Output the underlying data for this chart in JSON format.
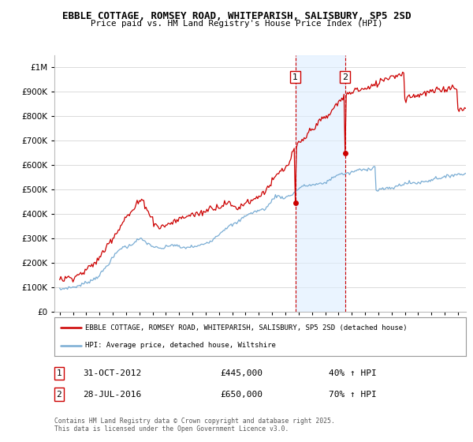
{
  "title": "EBBLE COTTAGE, ROMSEY ROAD, WHITEPARISH, SALISBURY, SP5 2SD",
  "subtitle": "Price paid vs. HM Land Registry's House Price Index (HPI)",
  "legend_line1": "EBBLE COTTAGE, ROMSEY ROAD, WHITEPARISH, SALISBURY, SP5 2SD (detached house)",
  "legend_line2": "HPI: Average price, detached house, Wiltshire",
  "transaction1_label": "1",
  "transaction1_date": "31-OCT-2012",
  "transaction1_price": "£445,000",
  "transaction1_hpi": "40% ↑ HPI",
  "transaction2_label": "2",
  "transaction2_date": "28-JUL-2016",
  "transaction2_price": "£650,000",
  "transaction2_hpi": "70% ↑ HPI",
  "footnote": "Contains HM Land Registry data © Crown copyright and database right 2025.\nThis data is licensed under the Open Government Licence v3.0.",
  "house_color": "#cc0000",
  "hpi_color": "#7aadd4",
  "shade_color": "#ddeeff",
  "transaction1_x": 2012.83,
  "transaction2_x": 2016.57,
  "ylim_max": 1050000,
  "background_color": "#ffffff",
  "hpi_monthly": [
    90000,
    91000,
    92000,
    93500,
    95000,
    96000,
    97000,
    97500,
    98000,
    98500,
    99000,
    99500,
    100000,
    101000,
    102000,
    103000,
    104000,
    105500,
    107000,
    109000,
    111000,
    113000,
    115000,
    117000,
    119000,
    121000,
    123000,
    125000,
    127000,
    129000,
    131000,
    134000,
    137000,
    140000,
    143000,
    146000,
    150000,
    155000,
    160000,
    166000,
    172000,
    178000,
    184000,
    190000,
    196000,
    202000,
    208000,
    214000,
    220000,
    226000,
    232000,
    238000,
    244000,
    249000,
    254000,
    258000,
    262000,
    264000,
    265000,
    265000,
    265000,
    266000,
    267000,
    269000,
    272000,
    275000,
    279000,
    283000,
    287000,
    290000,
    293000,
    295000,
    296000,
    296000,
    295000,
    293000,
    290000,
    287000,
    284000,
    281000,
    278000,
    275000,
    272000,
    270000,
    268000,
    266000,
    264000,
    262000,
    260000,
    259000,
    258000,
    258000,
    258000,
    259000,
    260000,
    262000,
    264000,
    266000,
    268000,
    270000,
    272000,
    273000,
    273000,
    273000,
    272000,
    271000,
    269000,
    267000,
    265000,
    263000,
    262000,
    261000,
    261000,
    261000,
    262000,
    263000,
    264000,
    265000,
    265000,
    266000,
    266000,
    266000,
    266000,
    266000,
    267000,
    268000,
    269000,
    271000,
    273000,
    275000,
    277000,
    279000,
    281000,
    283000,
    285000,
    287000,
    289000,
    292000,
    295000,
    298000,
    302000,
    306000,
    310000,
    314000,
    318000,
    322000,
    326000,
    330000,
    334000,
    338000,
    342000,
    345000,
    347000,
    349000,
    351000,
    353000,
    355000,
    357000,
    359000,
    361000,
    363000,
    366000,
    370000,
    374000,
    378000,
    382000,
    386000,
    390000,
    394000,
    397000,
    399000,
    400000,
    401000,
    402000,
    404000,
    406000,
    408000,
    410000,
    412000,
    413000,
    414000,
    415000,
    416000,
    417000,
    419000,
    421000,
    424000,
    427000,
    431000,
    436000,
    442000,
    449000,
    457000,
    464000,
    469000,
    472000,
    473000,
    473000,
    472000,
    471000,
    469000,
    468000,
    467000,
    467000,
    468000,
    469000,
    471000,
    473000,
    475000,
    477000,
    480000,
    483000,
    487000,
    491000,
    496000,
    500000,
    504000,
    507000,
    510000,
    512000,
    513000,
    514000,
    515000,
    516000,
    517000,
    517000,
    518000,
    518000,
    519000,
    519000,
    520000,
    520000,
    521000,
    521000,
    522000,
    522000,
    523000,
    524000,
    525000,
    527000,
    529000,
    531000,
    533000,
    536000,
    539000,
    542000,
    546000,
    550000,
    553000,
    556000,
    558000,
    560000,
    561000,
    562000,
    563000,
    564000,
    564000,
    564000,
    564000,
    564000,
    565000,
    566000,
    567000,
    568000,
    570000,
    572000,
    574000,
    576000,
    578000,
    579000,
    580000,
    580000,
    580000,
    580000,
    580000,
    581000,
    582000,
    583000,
    584000,
    585000,
    586000,
    587000,
    588000,
    590000,
    592000,
    594000,
    496000,
    498000,
    499000,
    500000,
    501000,
    502000,
    503000,
    503000,
    503000,
    503000,
    503000,
    503000,
    504000,
    505000,
    506000,
    507000,
    508000,
    510000,
    512000,
    514000,
    516000,
    518000,
    520000,
    521000,
    522000,
    523000,
    524000,
    525000,
    526000,
    527000,
    527000,
    527000,
    527000,
    527000,
    527000,
    527000,
    527000,
    527000,
    528000,
    528000,
    529000,
    530000,
    531000,
    532000,
    533000,
    534000,
    535000,
    536000,
    537000,
    538000,
    540000,
    542000,
    544000,
    546000,
    547000,
    548000,
    548000,
    548000,
    548000,
    548000,
    548000,
    549000,
    550000,
    551000,
    552000,
    553000,
    555000,
    557000,
    559000,
    560000,
    561000,
    562000,
    562000,
    562000,
    562000,
    562000,
    562000,
    562000,
    562000,
    563000,
    564000,
    565000,
    566000,
    568000,
    570000,
    572000,
    575000,
    578000,
    581000,
    584000,
    587000,
    590000,
    592000,
    594000,
    596000,
    597000,
    598000,
    599000
  ],
  "prop_monthly": [
    130000,
    131000,
    132000,
    133000,
    135000,
    136000,
    137000,
    138000,
    139000,
    140000,
    141000,
    142000,
    143000,
    144000,
    145000,
    147000,
    149000,
    151000,
    153000,
    155000,
    158000,
    161000,
    164000,
    167000,
    170000,
    173000,
    177000,
    181000,
    185000,
    189000,
    193000,
    197000,
    201000,
    205000,
    210000,
    215000,
    221000,
    227000,
    234000,
    241000,
    249000,
    257000,
    265000,
    273000,
    280000,
    287000,
    293000,
    299000,
    305000,
    311000,
    317000,
    323000,
    330000,
    337000,
    344000,
    352000,
    360000,
    368000,
    375000,
    381000,
    386000,
    390000,
    394000,
    398000,
    402000,
    408000,
    414000,
    420000,
    427000,
    434000,
    441000,
    447000,
    451000,
    454000,
    455000,
    453000,
    448000,
    441000,
    432000,
    422000,
    412000,
    402000,
    392000,
    383000,
    375000,
    368000,
    362000,
    357000,
    353000,
    350000,
    348000,
    347000,
    347000,
    348000,
    350000,
    352000,
    354000,
    356000,
    358000,
    360000,
    362000,
    364000,
    366000,
    368000,
    370000,
    372000,
    374000,
    376000,
    378000,
    380000,
    382000,
    384000,
    386000,
    388000,
    390000,
    392000,
    393000,
    394000,
    395000,
    396000,
    397000,
    398000,
    399000,
    400000,
    400000,
    401000,
    402000,
    403000,
    404000,
    406000,
    408000,
    410000,
    413000,
    416000,
    419000,
    422000,
    424000,
    426000,
    427000,
    428000,
    428000,
    428000,
    428000,
    429000,
    430000,
    432000,
    434000,
    437000,
    440000,
    443000,
    445000,
    445000,
    444000,
    442000,
    439000,
    436000,
    433000,
    430000,
    428000,
    427000,
    426000,
    426000,
    427000,
    429000,
    432000,
    436000,
    440000,
    444000,
    448000,
    451000,
    453000,
    454000,
    455000,
    455000,
    456000,
    458000,
    460000,
    463000,
    466000,
    469000,
    473000,
    477000,
    481000,
    485000,
    489000,
    493000,
    497000,
    502000,
    507000,
    513000,
    519000,
    525000,
    531000,
    537000,
    543000,
    549000,
    555000,
    561000,
    567000,
    571000,
    575000,
    578000,
    580000,
    582000,
    585000,
    590000,
    597000,
    606000,
    617000,
    629000,
    641000,
    651000,
    660000,
    668000,
    675000,
    681000,
    686000,
    690000,
    694000,
    698000,
    702000,
    707000,
    713000,
    719000,
    726000,
    732000,
    738000,
    743000,
    748000,
    753000,
    758000,
    762000,
    767000,
    771000,
    775000,
    779000,
    783000,
    786000,
    789000,
    791000,
    793000,
    796000,
    799000,
    803000,
    808000,
    814000,
    821000,
    828000,
    835000,
    841000,
    847000,
    852000,
    857000,
    862000,
    867000,
    872000,
    876000,
    880000,
    883000,
    886000,
    889000,
    892000,
    895000,
    898000,
    901000,
    904000,
    906000,
    908000,
    909000,
    910000,
    910000,
    910000,
    910000,
    910000,
    910000,
    910000,
    911000,
    912000,
    913000,
    914000,
    916000,
    918000,
    920000,
    923000,
    926000,
    929000,
    932000,
    935000,
    938000,
    941000,
    944000,
    947000,
    950000,
    952000,
    954000,
    956000,
    958000,
    960000,
    962000,
    963000,
    964000,
    965000,
    966000,
    967000,
    968000,
    969000,
    970000,
    971000,
    972000,
    973000,
    974000,
    975000,
    876000,
    877000,
    878000,
    879000,
    880000,
    881000,
    882000,
    883000,
    884000,
    885000,
    886000,
    887000,
    888000,
    889000,
    890000,
    891000,
    892000,
    893000,
    894000,
    895000,
    896000,
    897000,
    898000,
    899000,
    900000,
    901000,
    902000,
    903000,
    904000,
    905000,
    906000,
    907000,
    908000,
    909000,
    910000,
    911000,
    912000,
    913000,
    914000,
    915000,
    916000,
    917000,
    918000,
    919000,
    920000,
    921000,
    922000,
    923000,
    824000,
    825000,
    826000,
    827000,
    828000,
    829000,
    830000,
    831000,
    832000,
    833000,
    834000,
    835000,
    836000,
    837000,
    838000,
    839000,
    840000,
    841000,
    842000,
    843000,
    844000,
    845000,
    846000,
    847000
  ]
}
